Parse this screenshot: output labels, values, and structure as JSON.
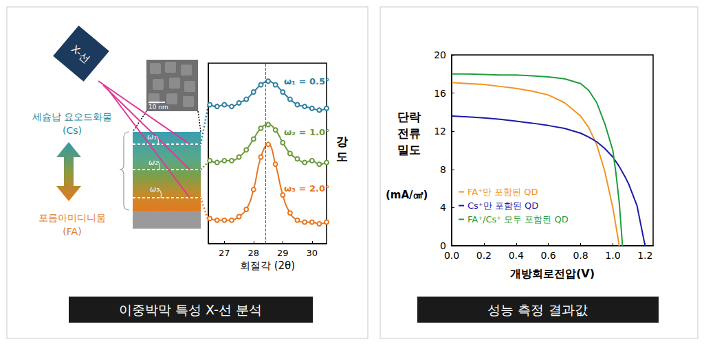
{
  "chart_data": [
    {
      "type": "line",
      "xlabel": "회절각 (2θ)",
      "ylabel": "강도",
      "xlim": [
        26.45,
        30.5
      ],
      "xticks": [
        27,
        28,
        29,
        30
      ],
      "ylim": [
        0,
        100
      ],
      "tick_labels": "x",
      "grid": false,
      "reference_line": {
        "x": 28.4,
        "line_style": "dashed"
      },
      "x": [
        26.5,
        26.75,
        27.0,
        27.25,
        27.5,
        27.75,
        28.0,
        28.25,
        28.5,
        28.75,
        29.0,
        29.25,
        29.5,
        29.75,
        30.0,
        30.25,
        30.5
      ],
      "series": [
        {
          "name": "ω₁ = 0.5°",
          "color": "#2f7fa0",
          "marker": "open_circle",
          "values": [
            77,
            76,
            77,
            76,
            78,
            80,
            84,
            88,
            90,
            88,
            84,
            80,
            77,
            76,
            75,
            74,
            75
          ]
        },
        {
          "name": "ω₂ = 1.0°",
          "color": "#6a9a3c",
          "marker": "open_circle",
          "values": [
            46,
            45,
            46,
            46,
            48,
            52,
            58,
            64,
            66,
            63,
            56,
            50,
            47,
            45,
            46,
            44,
            45
          ]
        },
        {
          "name": "ω₃ = 2.0°",
          "color": "#e8761e",
          "marker": "open_circle",
          "values": [
            14,
            13,
            13,
            13,
            15,
            19,
            30,
            48,
            55,
            44,
            27,
            17,
            13,
            12,
            12,
            11,
            12
          ]
        }
      ]
    },
    {
      "type": "line",
      "xlabel": "개방회로전압(V)",
      "ylabel": [
        "단락",
        "전류",
        "밀도",
        "(mA/㎠)"
      ],
      "xlim": [
        0,
        1.25
      ],
      "xticks": [
        {
          "value": 0,
          "label": "0.0"
        },
        {
          "value": 0.2,
          "label": "0.2"
        },
        {
          "value": 0.4,
          "label": "0.4"
        },
        {
          "value": 0.6,
          "label": "0.6"
        },
        {
          "value": 0.8,
          "label": "0.8"
        },
        {
          "value": 1.0,
          "label": "1.0"
        },
        {
          "value": 1.2,
          "label": "1.2"
        }
      ],
      "ylim": [
        0,
        20
      ],
      "yticks": [
        0,
        4,
        8,
        12,
        16,
        20
      ],
      "grid": false,
      "legend": "lower left",
      "x": [
        0,
        0.1,
        0.2,
        0.3,
        0.4,
        0.5,
        0.6,
        0.7,
        0.8,
        0.85,
        0.9,
        0.95,
        1.0,
        1.02,
        1.04,
        1.06,
        1.08,
        1.1,
        1.15,
        1.2
      ],
      "series": [
        {
          "name": "FA⁺만 포함된 QD",
          "color": "#f39322",
          "values": [
            17.1,
            17.0,
            16.9,
            16.7,
            16.5,
            16.2,
            15.8,
            15.0,
            13.6,
            12.4,
            10.6,
            7.8,
            4.0,
            2.0,
            0,
            null,
            null,
            null,
            null,
            null
          ]
        },
        {
          "name": "Cs⁺만 포함된 QD",
          "color": "#1a1aa6",
          "values": [
            13.6,
            13.5,
            13.4,
            13.25,
            13.05,
            12.85,
            12.6,
            12.3,
            11.8,
            11.4,
            10.9,
            10.2,
            9.3,
            8.8,
            8.3,
            7.7,
            7.1,
            6.4,
            4.2,
            0
          ]
        },
        {
          "name": "FA⁺/Cs⁺ 모두 포함된 QD",
          "color": "#1e9e3a",
          "values": [
            18.0,
            18.0,
            17.95,
            17.9,
            17.9,
            17.8,
            17.7,
            17.5,
            17.0,
            16.3,
            15.0,
            12.8,
            10.0,
            7.5,
            4.5,
            0,
            null,
            null,
            null,
            null
          ]
        }
      ]
    }
  ],
  "diagram": {
    "xray": "X-선",
    "scale_bar": "10 nm",
    "top_layer": {
      "name": "세슘납 요오드화물",
      "abbr": "(Cs)"
    },
    "bottom_layer": {
      "name": "포름아미디니움",
      "abbr": "(FA)"
    },
    "angles": [
      "ω₁",
      "ω₂",
      "ω₃"
    ]
  },
  "captions": [
    "이중박막 특성 X-선 분석",
    "성능 측정 결과값"
  ]
}
